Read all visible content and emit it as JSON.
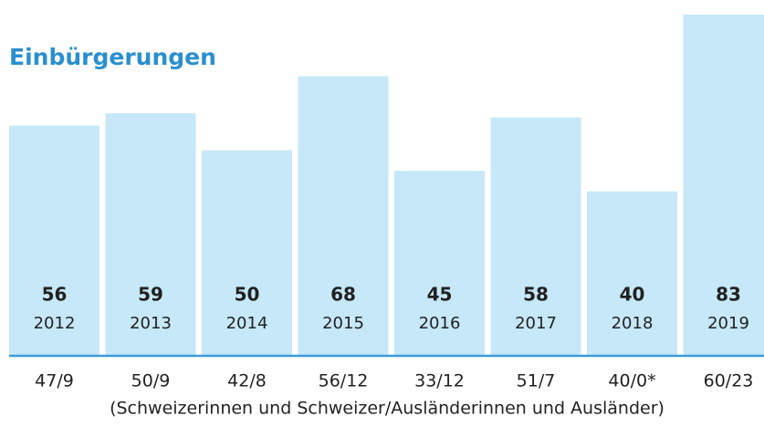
{
  "chart_data": {
    "type": "bar",
    "title": "Einbürgerungen",
    "categories": [
      "2012",
      "2013",
      "2014",
      "2015",
      "2016",
      "2017",
      "2018",
      "2019"
    ],
    "values": [
      56,
      59,
      50,
      68,
      45,
      58,
      40,
      83
    ],
    "sublabels": [
      "47/9",
      "50/9",
      "42/8",
      "56/12",
      "33/12",
      "51/7",
      "40/0*",
      "60/23"
    ],
    "xlabel": "(Schweizerinnen und Schweizer/Ausländerinnen und Ausländer)",
    "color": "#c6e8f8"
  }
}
